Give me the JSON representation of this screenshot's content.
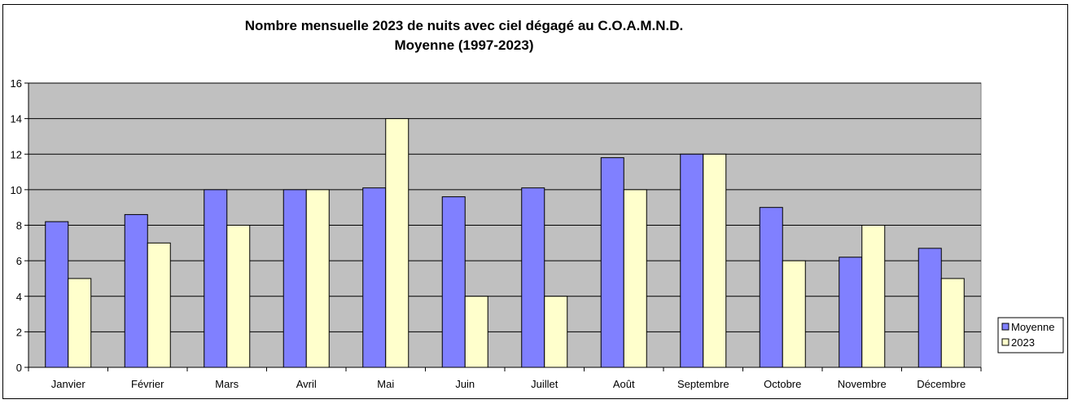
{
  "chart_data": {
    "type": "bar",
    "title": "Nombre mensuelle 2023 de nuits avec ciel dégagé au C.O.A.M.N.D.",
    "subtitle": "Moyenne (1997-2023)",
    "categories": [
      "Janvier",
      "Février",
      "Mars",
      "Avril",
      "Mai",
      "Juin",
      "Juillet",
      "Août",
      "Septembre",
      "Octobre",
      "Novembre",
      "Décembre"
    ],
    "series": [
      {
        "name": "Moyenne",
        "color": "#8080ff",
        "values": [
          8.2,
          8.6,
          10.0,
          10.0,
          10.1,
          9.6,
          10.1,
          11.8,
          12.0,
          9.0,
          6.2,
          6.7
        ]
      },
      {
        "name": "2023",
        "color": "#ffffcc",
        "values": [
          5,
          7,
          8,
          10,
          14,
          4,
          4,
          10,
          12,
          6,
          8,
          5
        ]
      }
    ],
    "ylim": [
      0,
      16
    ],
    "yticks": [
      "0",
      "2",
      "4",
      "6",
      "8",
      "10",
      "12",
      "14",
      "16"
    ],
    "plot_background": "#c0c0c0",
    "grid": true,
    "legend_position": "right"
  }
}
